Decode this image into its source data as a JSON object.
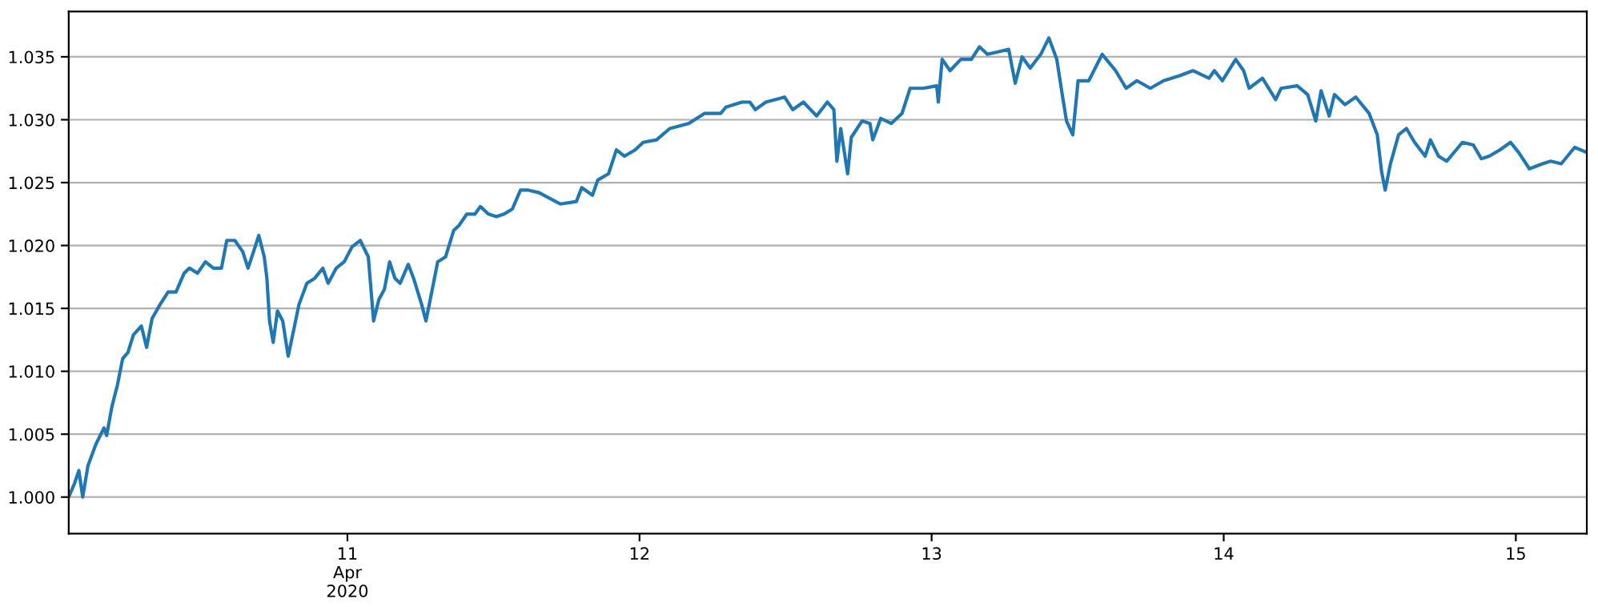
{
  "chart_data": {
    "type": "line",
    "grid": "y",
    "marker": "none",
    "line_style": "solid",
    "xlim": [
      "2020-04-10T01:06",
      "2020-04-15T05:50"
    ],
    "xticks": [
      {
        "value": "2020-04-11",
        "label": "11\nApr\n2020"
      },
      {
        "value": "2020-04-12",
        "label": "12"
      },
      {
        "value": "2020-04-13",
        "label": "13"
      },
      {
        "value": "2020-04-14",
        "label": "14"
      },
      {
        "value": "2020-04-15",
        "label": "15"
      }
    ],
    "ylim": [
      0.9971,
      1.0386
    ],
    "yticks": [
      {
        "value": 1.0,
        "label": "1.000"
      },
      {
        "value": 1.005,
        "label": "1.005"
      },
      {
        "value": 1.01,
        "label": "1.010"
      },
      {
        "value": 1.015,
        "label": "1.015"
      },
      {
        "value": 1.02,
        "label": "1.020"
      },
      {
        "value": 1.025,
        "label": "1.025"
      },
      {
        "value": 1.03,
        "label": "1.030"
      },
      {
        "value": 1.035,
        "label": "1.035"
      }
    ],
    "series": [
      {
        "color": "#1f77b4",
        "x": [
          "2020-04-10T01:06",
          "2020-04-10T01:35",
          "2020-04-10T01:56",
          "2020-04-10T02:15",
          "2020-04-10T02:41",
          "2020-04-10T03:20",
          "2020-04-10T04:00",
          "2020-04-10T04:13",
          "2020-04-10T04:39",
          "2020-04-10T05:06",
          "2020-04-10T05:32",
          "2020-04-10T05:58",
          "2020-04-10T06:25",
          "2020-04-10T07:04",
          "2020-04-10T07:30",
          "2020-04-10T07:57",
          "2020-04-10T08:36",
          "2020-04-10T09:16",
          "2020-04-10T09:55",
          "2020-04-10T10:35",
          "2020-04-10T11:01",
          "2020-04-10T11:41",
          "2020-04-10T12:20",
          "2020-04-10T12:59",
          "2020-04-10T13:39",
          "2020-04-10T14:05",
          "2020-04-10T14:45",
          "2020-04-10T15:24",
          "2020-04-10T15:50",
          "2020-04-10T16:17",
          "2020-04-10T16:43",
          "2020-04-10T17:10",
          "2020-04-10T17:23",
          "2020-04-10T17:36",
          "2020-04-10T17:54",
          "2020-04-10T18:15",
          "2020-04-10T18:41",
          "2020-04-10T19:08",
          "2020-04-10T19:34",
          "2020-04-10T20:01",
          "2020-04-10T20:40",
          "2020-04-10T21:19",
          "2020-04-10T21:59",
          "2020-04-10T22:25",
          "2020-04-10T23:05",
          "2020-04-10T23:44",
          "2020-04-11T00:23",
          "2020-04-11T01:03",
          "2020-04-11T01:43",
          "2020-04-11T02:09",
          "2020-04-11T02:35",
          "2020-04-11T03:02",
          "2020-04-11T03:28",
          "2020-04-11T03:54",
          "2020-04-11T04:20",
          "2020-04-11T05:00",
          "2020-04-11T05:26",
          "2020-04-11T06:06",
          "2020-04-11T06:27",
          "2020-04-11T06:58",
          "2020-04-11T07:25",
          "2020-04-11T08:04",
          "2020-04-11T08:44",
          "2020-04-11T09:10",
          "2020-04-11T09:49",
          "2020-04-11T10:29",
          "2020-04-11T10:55",
          "2020-04-11T11:35",
          "2020-04-11T12:14",
          "2020-04-11T12:53",
          "2020-04-11T13:33",
          "2020-04-11T14:13",
          "2020-04-11T14:52",
          "2020-04-11T15:45",
          "2020-04-11T17:30",
          "2020-04-11T18:49",
          "2020-04-11T19:15",
          "2020-04-11T20:08",
          "2020-04-11T20:34",
          "2020-04-11T21:27",
          "2020-04-11T22:06",
          "2020-04-11T22:46",
          "2020-04-11T23:38",
          "2020-04-12T00:18",
          "2020-04-12T01:24",
          "2020-04-12T02:29",
          "2020-04-12T04:02",
          "2020-04-12T05:20",
          "2020-04-12T06:40",
          "2020-04-12T07:06",
          "2020-04-12T08:25",
          "2020-04-12T09:04",
          "2020-04-12T09:31",
          "2020-04-12T10:23",
          "2020-04-12T11:55",
          "2020-04-12T12:35",
          "2020-04-12T13:28",
          "2020-04-12T14:33",
          "2020-04-12T15:26",
          "2020-04-12T15:58",
          "2020-04-12T16:13",
          "2020-04-12T16:32",
          "2020-04-12T17:06",
          "2020-04-12T17:24",
          "2020-04-12T18:17",
          "2020-04-12T18:56",
          "2020-04-12T19:10",
          "2020-04-12T19:49",
          "2020-04-12T20:41",
          "2020-04-12T21:34",
          "2020-04-12T22:14",
          "2020-04-12T23:19",
          "2020-04-13T00:25",
          "2020-04-13T00:33",
          "2020-04-13T00:52",
          "2020-04-13T01:31",
          "2020-04-13T02:24",
          "2020-04-13T03:16",
          "2020-04-13T03:56",
          "2020-04-13T04:35",
          "2020-04-13T05:28",
          "2020-04-13T06:20",
          "2020-04-13T06:52",
          "2020-04-13T07:26",
          "2020-04-13T08:06",
          "2020-04-13T08:58",
          "2020-04-13T09:38",
          "2020-04-13T10:17",
          "2020-04-13T10:44",
          "2020-04-13T11:05",
          "2020-04-13T11:36",
          "2020-04-13T12:02",
          "2020-04-13T12:55",
          "2020-04-13T14:01",
          "2020-04-13T15:07",
          "2020-04-13T15:59",
          "2020-04-13T16:52",
          "2020-04-13T17:58",
          "2020-04-13T19:04",
          "2020-04-13T20:23",
          "2020-04-13T21:28",
          "2020-04-13T22:47",
          "2020-04-13T23:14",
          "2020-04-13T23:53",
          "2020-04-14T00:59",
          "2020-04-14T01:38",
          "2020-04-14T02:05",
          "2020-04-14T03:11",
          "2020-04-14T04:16",
          "2020-04-14T04:43",
          "2020-04-14T06:02",
          "2020-04-14T06:54",
          "2020-04-14T07:34",
          "2020-04-14T08:00",
          "2020-04-14T08:40",
          "2020-04-14T09:06",
          "2020-04-14T09:58",
          "2020-04-14T10:51",
          "2020-04-14T11:57",
          "2020-04-14T12:37",
          "2020-04-14T12:58",
          "2020-04-14T13:16",
          "2020-04-14T13:42",
          "2020-04-14T14:22",
          "2020-04-14T15:01",
          "2020-04-14T15:41",
          "2020-04-14T16:33",
          "2020-04-14T16:59",
          "2020-04-14T17:39",
          "2020-04-14T18:19",
          "2020-04-14T19:37",
          "2020-04-14T20:30",
          "2020-04-14T21:10",
          "2020-04-14T21:49",
          "2020-04-14T22:41",
          "2020-04-14T23:34",
          "2020-04-15T00:14",
          "2020-04-15T01:07",
          "2020-04-15T02:12",
          "2020-04-15T02:52",
          "2020-04-15T03:44",
          "2020-04-15T04:50",
          "2020-04-15T05:50"
        ],
        "values": [
          1.0,
          1.0011,
          1.0021,
          1.0,
          1.0025,
          1.0042,
          1.0055,
          1.0049,
          1.0072,
          1.0089,
          1.011,
          1.0115,
          1.0129,
          1.0136,
          1.0119,
          1.0142,
          1.0153,
          1.0163,
          1.0163,
          1.0178,
          1.0182,
          1.0178,
          1.0187,
          1.0182,
          1.0182,
          1.0204,
          1.0204,
          1.0195,
          1.0182,
          1.0195,
          1.0208,
          1.0191,
          1.0174,
          1.014,
          1.0123,
          1.0148,
          1.014,
          1.0112,
          1.0132,
          1.0153,
          1.017,
          1.0174,
          1.0182,
          1.017,
          1.0182,
          1.0187,
          1.0199,
          1.0204,
          1.0191,
          1.014,
          1.0157,
          1.0165,
          1.0187,
          1.0174,
          1.017,
          1.0185,
          1.0174,
          1.0153,
          1.014,
          1.0165,
          1.0187,
          1.0191,
          1.0212,
          1.0216,
          1.0225,
          1.0225,
          1.0231,
          1.0225,
          1.0223,
          1.0225,
          1.0229,
          1.0244,
          1.0244,
          1.0242,
          1.0233,
          1.0235,
          1.0246,
          1.024,
          1.0252,
          1.0257,
          1.0276,
          1.0271,
          1.0276,
          1.0282,
          1.0284,
          1.0293,
          1.0297,
          1.0305,
          1.0305,
          1.031,
          1.0314,
          1.0314,
          1.0308,
          1.0314,
          1.0318,
          1.0308,
          1.0314,
          1.0303,
          1.0314,
          1.0308,
          1.0267,
          1.0293,
          1.0257,
          1.0286,
          1.0299,
          1.0297,
          1.0284,
          1.0301,
          1.0297,
          1.0305,
          1.0325,
          1.0325,
          1.0327,
          1.0314,
          1.0348,
          1.0339,
          1.0348,
          1.0348,
          1.0358,
          1.0352,
          1.0354,
          1.0356,
          1.0329,
          1.035,
          1.0341,
          1.0352,
          1.0365,
          1.0348,
          1.032,
          1.0299,
          1.0288,
          1.0331,
          1.0331,
          1.0352,
          1.0339,
          1.0325,
          1.0331,
          1.0325,
          1.0331,
          1.0335,
          1.0339,
          1.0333,
          1.0339,
          1.0331,
          1.0348,
          1.0339,
          1.0325,
          1.0333,
          1.0316,
          1.0325,
          1.0327,
          1.032,
          1.0299,
          1.0323,
          1.0303,
          1.032,
          1.0312,
          1.0318,
          1.0305,
          1.0288,
          1.0259,
          1.0244,
          1.0265,
          1.0288,
          1.0293,
          1.0282,
          1.0271,
          1.0284,
          1.0271,
          1.0267,
          1.0282,
          1.028,
          1.0269,
          1.0271,
          1.0276,
          1.0282,
          1.0274,
          1.0261,
          1.0265,
          1.0267,
          1.0265,
          1.0278,
          1.0274
        ]
      }
    ]
  }
}
